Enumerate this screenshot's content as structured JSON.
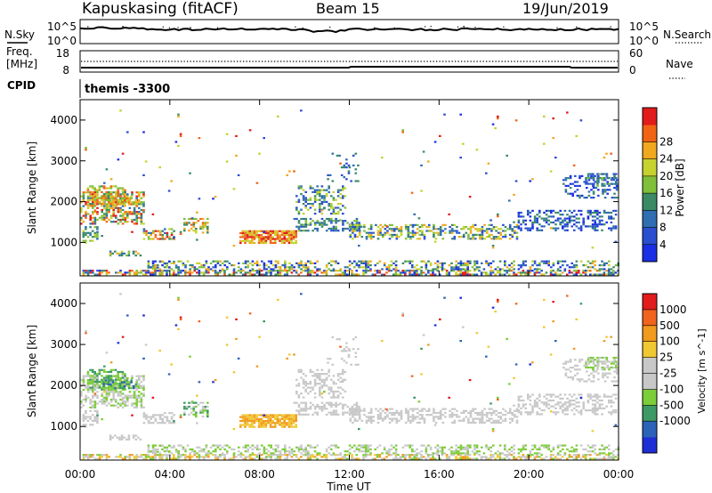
{
  "header": {
    "title": "Kapuskasing (fitACF)",
    "beam": "Beam 15",
    "date": "19/Jun/2019"
  },
  "nsky": {
    "left_label": "N.Sky",
    "left_ticks": [
      "10^5",
      "10^0"
    ],
    "right_ticks": [
      "10^5",
      "10^0"
    ],
    "right_label": "N.Search"
  },
  "freq": {
    "left_label_1": "Freq.",
    "left_label_2": "[MHz]",
    "left_ticks": [
      "18",
      "8"
    ],
    "right_ticks": [
      "60",
      "0"
    ],
    "right_label": "Nave",
    "cpid_label": "CPID",
    "cpid_value": "themis -3300"
  },
  "chart_data": [
    {
      "type": "heatmap",
      "name": "power",
      "ylabel": "Slant Range [km]",
      "yticks": [
        "1000",
        "2000",
        "3000",
        "4000"
      ],
      "ylim": [
        180,
        4500
      ],
      "colorbar_label": "Power [dB]",
      "colorbar_ticks": [
        "4",
        "8",
        "12",
        "16",
        "20",
        "24",
        "28"
      ],
      "colorbar_colors": [
        "#1a2ee6",
        "#2a4ed0",
        "#2f6eb0",
        "#3a8a66",
        "#7fbf3a",
        "#c6d22e",
        "#f0a81e",
        "#f06414",
        "#e21b1b"
      ]
    },
    {
      "type": "heatmap",
      "name": "velocity",
      "ylabel": "Slant Range [km]",
      "yticks": [
        "1000",
        "2000",
        "3000",
        "4000"
      ],
      "ylim": [
        180,
        4500
      ],
      "colorbar_label": "Velocity [m s^-1]",
      "colorbar_ticks": [
        "1000",
        "500",
        "100",
        "25",
        "-25",
        "-100",
        "-500",
        "-1000"
      ],
      "colorbar_colors": [
        "#1e2ed6",
        "#2b63b8",
        "#3e9a64",
        "#7ccd3a",
        "#c8c8c8",
        "#c8c8c8",
        "#f0c832",
        "#f09a1e",
        "#f0641e",
        "#e21b1b"
      ]
    }
  ],
  "xaxis": {
    "label": "Time UT",
    "ticks": [
      "00:00",
      "04:00",
      "08:00",
      "12:00",
      "16:00",
      "20:00",
      "00:00"
    ]
  }
}
